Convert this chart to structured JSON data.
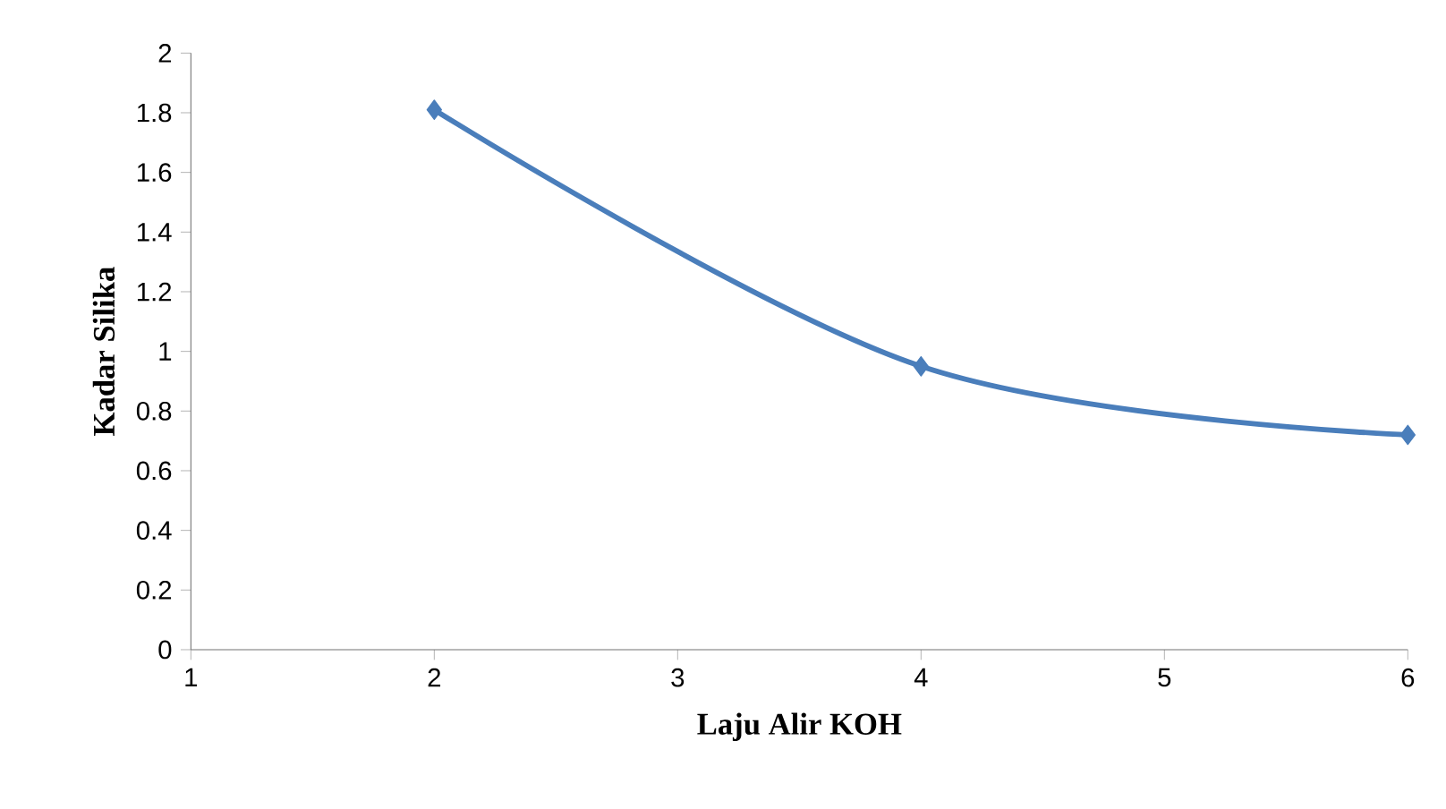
{
  "chart_data": {
    "type": "line",
    "xlabel": "Laju Alir  KOH",
    "ylabel": "Kadar Silika",
    "x": [
      2,
      4,
      6
    ],
    "series": [
      {
        "color": "#4a7ebb",
        "values": [
          1.81,
          0.95,
          0.72
        ]
      }
    ],
    "xlim": [
      1,
      6
    ],
    "xticks": [
      1,
      2,
      3,
      4,
      5,
      6
    ],
    "ylim": [
      0,
      2
    ],
    "yticks": [
      0,
      0.2,
      0.4,
      0.6,
      0.8,
      1,
      1.2,
      1.4,
      1.6,
      1.8,
      2
    ],
    "marker": "diamond",
    "line_style": "solid"
  }
}
